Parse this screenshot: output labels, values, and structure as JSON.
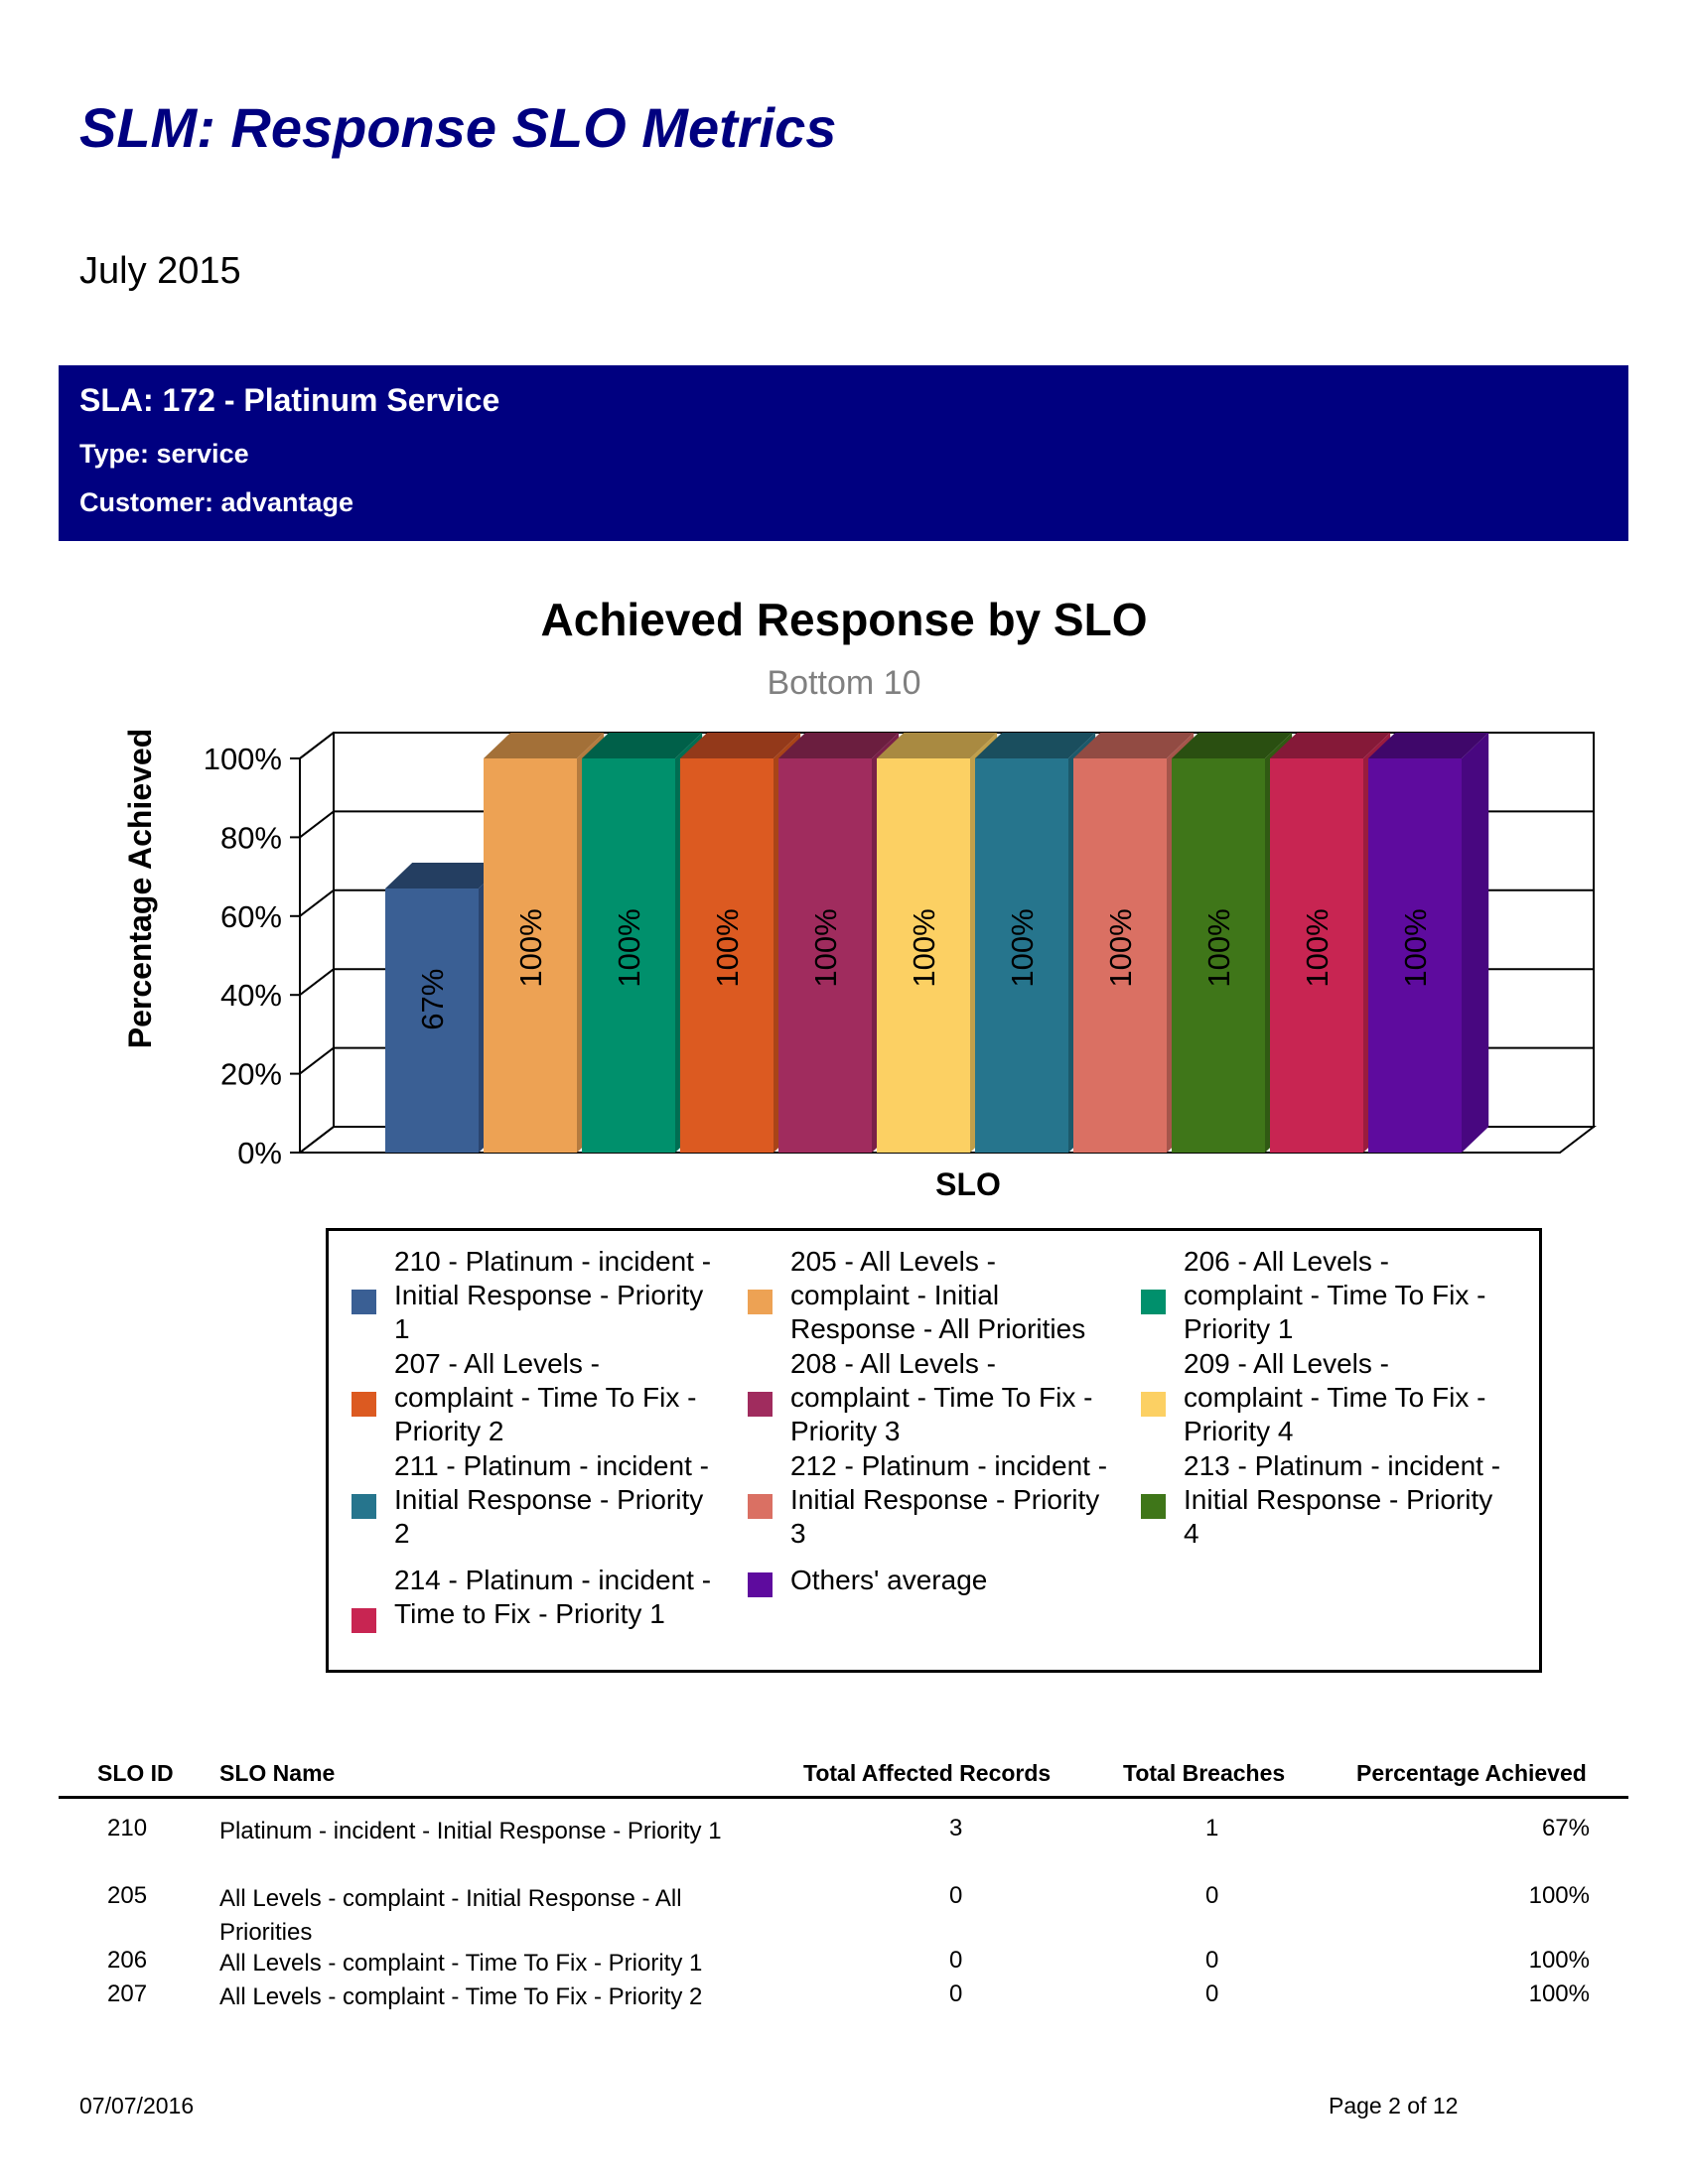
{
  "report": {
    "title": "SLM: Response SLO Metrics",
    "period": "July 2015"
  },
  "sla": {
    "heading": "SLA: 172 - Platinum Service",
    "type": "Type: service",
    "customer": "Customer: advantage"
  },
  "chart_data": {
    "type": "bar",
    "title": "Achieved Response by SLO",
    "subtitle": "Bottom 10",
    "xlabel": "SLO",
    "ylabel": "Percentage Achieved",
    "ylim": [
      0,
      100
    ],
    "yticks": [
      "0%",
      "20%",
      "40%",
      "60%",
      "80%",
      "100%"
    ],
    "grid": true,
    "categories": [
      "210 - Platinum - incident - Initial Response - Priority 1",
      "205 - All Levels - complaint - Initial Response - All Priorities",
      "206 - All Levels - complaint - Time To Fix - Priority 1",
      "207 - All Levels - complaint - Time To Fix - Priority 2",
      "208 - All Levels - complaint - Time To Fix - Priority 3",
      "209 - All Levels - complaint - Time To Fix - Priority 4",
      "211 - Platinum - incident - Initial Response - Priority 2",
      "212 - Platinum - incident - Initial Response - Priority 3",
      "213 - Platinum - incident - Initial Response - Priority 4",
      "214 - Platinum - incident - Time to Fix - Priority 1",
      "Others' average"
    ],
    "values": [
      67,
      100,
      100,
      100,
      100,
      100,
      100,
      100,
      100,
      100,
      100
    ],
    "data_labels": [
      "67%",
      "100%",
      "100%",
      "100%",
      "100%",
      "100%",
      "100%",
      "100%",
      "100%",
      "100%",
      "100%"
    ],
    "colors": [
      "#3a5f94",
      "#eda254",
      "#00906c",
      "#dc5a21",
      "#a02c5e",
      "#fcd063",
      "#26758d",
      "#da7063",
      "#3f7619",
      "#c82552",
      "#5e0b9e"
    ],
    "top_colors": [
      "#243e61",
      "#a37038",
      "#006049",
      "#93391a",
      "#6b1e3f",
      "#a98a41",
      "#1a4e5e",
      "#924b43",
      "#2a4f11",
      "#851938",
      "#3f076a"
    ],
    "side_colors": [
      "#2a4570",
      "#b57b3f",
      "#006e52",
      "#a84418",
      "#7a2048",
      "#c09f4b",
      "#1c596b",
      "#a6554b",
      "#305a13",
      "#991c3f",
      "#480780"
    ]
  },
  "legend": {
    "items": [
      {
        "label": "210 - Platinum - incident - Initial Response - Priority 1"
      },
      {
        "label": "205 - All Levels - complaint - Initial Response - All Priorities"
      },
      {
        "label": "206 - All Levels - complaint - Time To Fix - Priority 1"
      },
      {
        "label": "207 - All Levels - complaint - Time To Fix - Priority 2"
      },
      {
        "label": "208 - All Levels - complaint - Time To Fix - Priority 3"
      },
      {
        "label": "209 - All Levels - complaint - Time To Fix - Priority 4"
      },
      {
        "label": "211 - Platinum - incident - Initial Response - Priority 2"
      },
      {
        "label": "212 - Platinum - incident - Initial Response - Priority 3"
      },
      {
        "label": "213 - Platinum - incident - Initial Response - Priority 4"
      },
      {
        "label": "214 - Platinum - incident - Time to Fix - Priority 1"
      },
      {
        "label": "Others' average"
      }
    ]
  },
  "table": {
    "headers": {
      "id": "SLO ID",
      "name": "SLO Name",
      "records": "Total Affected Records",
      "breaches": "Total Breaches",
      "pct": "Percentage Achieved"
    },
    "rows": [
      {
        "id": "210",
        "name": "Platinum - incident - Initial Response - Priority 1",
        "records": "3",
        "breaches": "1",
        "pct": "67%"
      },
      {
        "id": "205",
        "name": "All Levels - complaint - Initial Response - All Priorities",
        "records": "0",
        "breaches": "0",
        "pct": "100%"
      },
      {
        "id": "206",
        "name": "All Levels - complaint - Time To Fix - Priority 1",
        "records": "0",
        "breaches": "0",
        "pct": "100%"
      },
      {
        "id": "207",
        "name": "All Levels - complaint - Time To Fix - Priority 2",
        "records": "0",
        "breaches": "0",
        "pct": "100%"
      }
    ]
  },
  "footer": {
    "date": "07/07/2016",
    "page": "Page 2 of 12"
  }
}
